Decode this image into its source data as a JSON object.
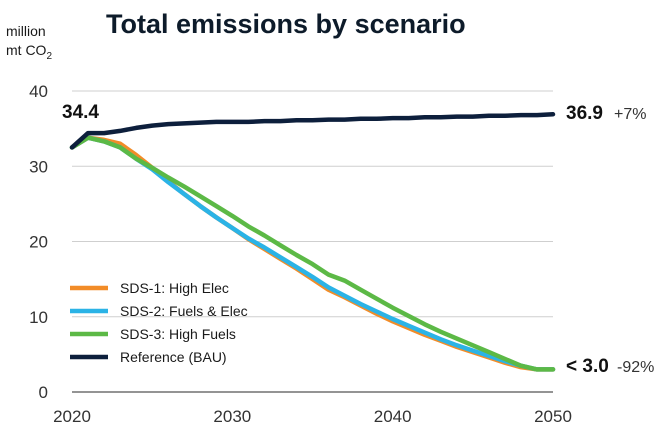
{
  "chart_data": {
    "type": "line",
    "title": "Total emissions by scenario",
    "ylabel_line1": "million",
    "ylabel_line2": "mt CO",
    "ylabel_sub": "2",
    "xlim": [
      2020,
      2050
    ],
    "ylim": [
      0,
      40
    ],
    "xticks": [
      2020,
      2030,
      2040,
      2050
    ],
    "yticks": [
      0,
      10,
      20,
      30,
      40
    ],
    "grid": "horizontal",
    "legend_position": "bottom-left",
    "series": [
      {
        "name": "SDS-1: High Elec",
        "color": "#f28c28",
        "x": [
          2020,
          2021,
          2022,
          2023,
          2024,
          2025,
          2026,
          2027,
          2028,
          2029,
          2030,
          2031,
          2032,
          2033,
          2034,
          2035,
          2036,
          2037,
          2038,
          2039,
          2040,
          2041,
          2042,
          2043,
          2044,
          2045,
          2046,
          2047,
          2048,
          2049,
          2050
        ],
        "values": [
          32.5,
          33.8,
          33.5,
          33.0,
          31.5,
          29.8,
          28.0,
          26.3,
          24.7,
          23.2,
          21.8,
          20.3,
          19.0,
          17.7,
          16.4,
          15.0,
          13.6,
          12.6,
          11.5,
          10.4,
          9.4,
          8.5,
          7.6,
          6.8,
          6.0,
          5.3,
          4.6,
          3.9,
          3.3,
          3.0,
          3.0
        ]
      },
      {
        "name": "SDS-2: Fuels & Elec",
        "color": "#2bb3e6",
        "x": [
          2020,
          2021,
          2022,
          2023,
          2024,
          2025,
          2026,
          2027,
          2028,
          2029,
          2030,
          2031,
          2032,
          2033,
          2034,
          2035,
          2036,
          2037,
          2038,
          2039,
          2040,
          2041,
          2042,
          2043,
          2044,
          2045,
          2046,
          2047,
          2048,
          2049,
          2050
        ],
        "values": [
          32.5,
          33.8,
          33.3,
          32.5,
          31.0,
          29.6,
          27.9,
          26.3,
          24.7,
          23.2,
          21.8,
          20.4,
          19.2,
          17.9,
          16.6,
          15.3,
          13.9,
          12.8,
          11.7,
          10.7,
          9.7,
          8.8,
          7.9,
          7.0,
          6.2,
          5.5,
          4.8,
          4.1,
          3.5,
          3.0,
          3.0
        ]
      },
      {
        "name": "SDS-3: High Fuels",
        "color": "#5cb946",
        "x": [
          2020,
          2021,
          2022,
          2023,
          2024,
          2025,
          2026,
          2027,
          2028,
          2029,
          2030,
          2031,
          2032,
          2033,
          2034,
          2035,
          2036,
          2037,
          2038,
          2039,
          2040,
          2041,
          2042,
          2043,
          2044,
          2045,
          2046,
          2047,
          2048,
          2049,
          2050
        ],
        "values": [
          32.5,
          33.8,
          33.3,
          32.5,
          31.0,
          29.8,
          28.5,
          27.3,
          26.0,
          24.7,
          23.4,
          22.0,
          20.8,
          19.5,
          18.2,
          17.0,
          15.6,
          14.8,
          13.6,
          12.4,
          11.2,
          10.1,
          9.0,
          8.0,
          7.1,
          6.2,
          5.3,
          4.4,
          3.5,
          3.0,
          3.0
        ]
      },
      {
        "name": "Reference (BAU)",
        "color": "#0d1f3c",
        "x": [
          2020,
          2021,
          2022,
          2023,
          2024,
          2025,
          2026,
          2027,
          2028,
          2029,
          2030,
          2031,
          2032,
          2033,
          2034,
          2035,
          2036,
          2037,
          2038,
          2039,
          2040,
          2041,
          2042,
          2043,
          2044,
          2045,
          2046,
          2047,
          2048,
          2049,
          2050
        ],
        "values": [
          32.5,
          34.4,
          34.4,
          34.7,
          35.1,
          35.4,
          35.6,
          35.7,
          35.8,
          35.9,
          35.9,
          35.9,
          36.0,
          36.0,
          36.1,
          36.1,
          36.2,
          36.2,
          36.3,
          36.3,
          36.4,
          36.4,
          36.5,
          36.5,
          36.6,
          36.6,
          36.7,
          36.7,
          36.8,
          36.8,
          36.9
        ]
      }
    ],
    "annotations": {
      "start_value": "34.4",
      "bau_end_value": "36.9",
      "bau_end_change": "+7%",
      "sds_end_value": "< 3.0",
      "sds_end_change": "-92%"
    }
  }
}
